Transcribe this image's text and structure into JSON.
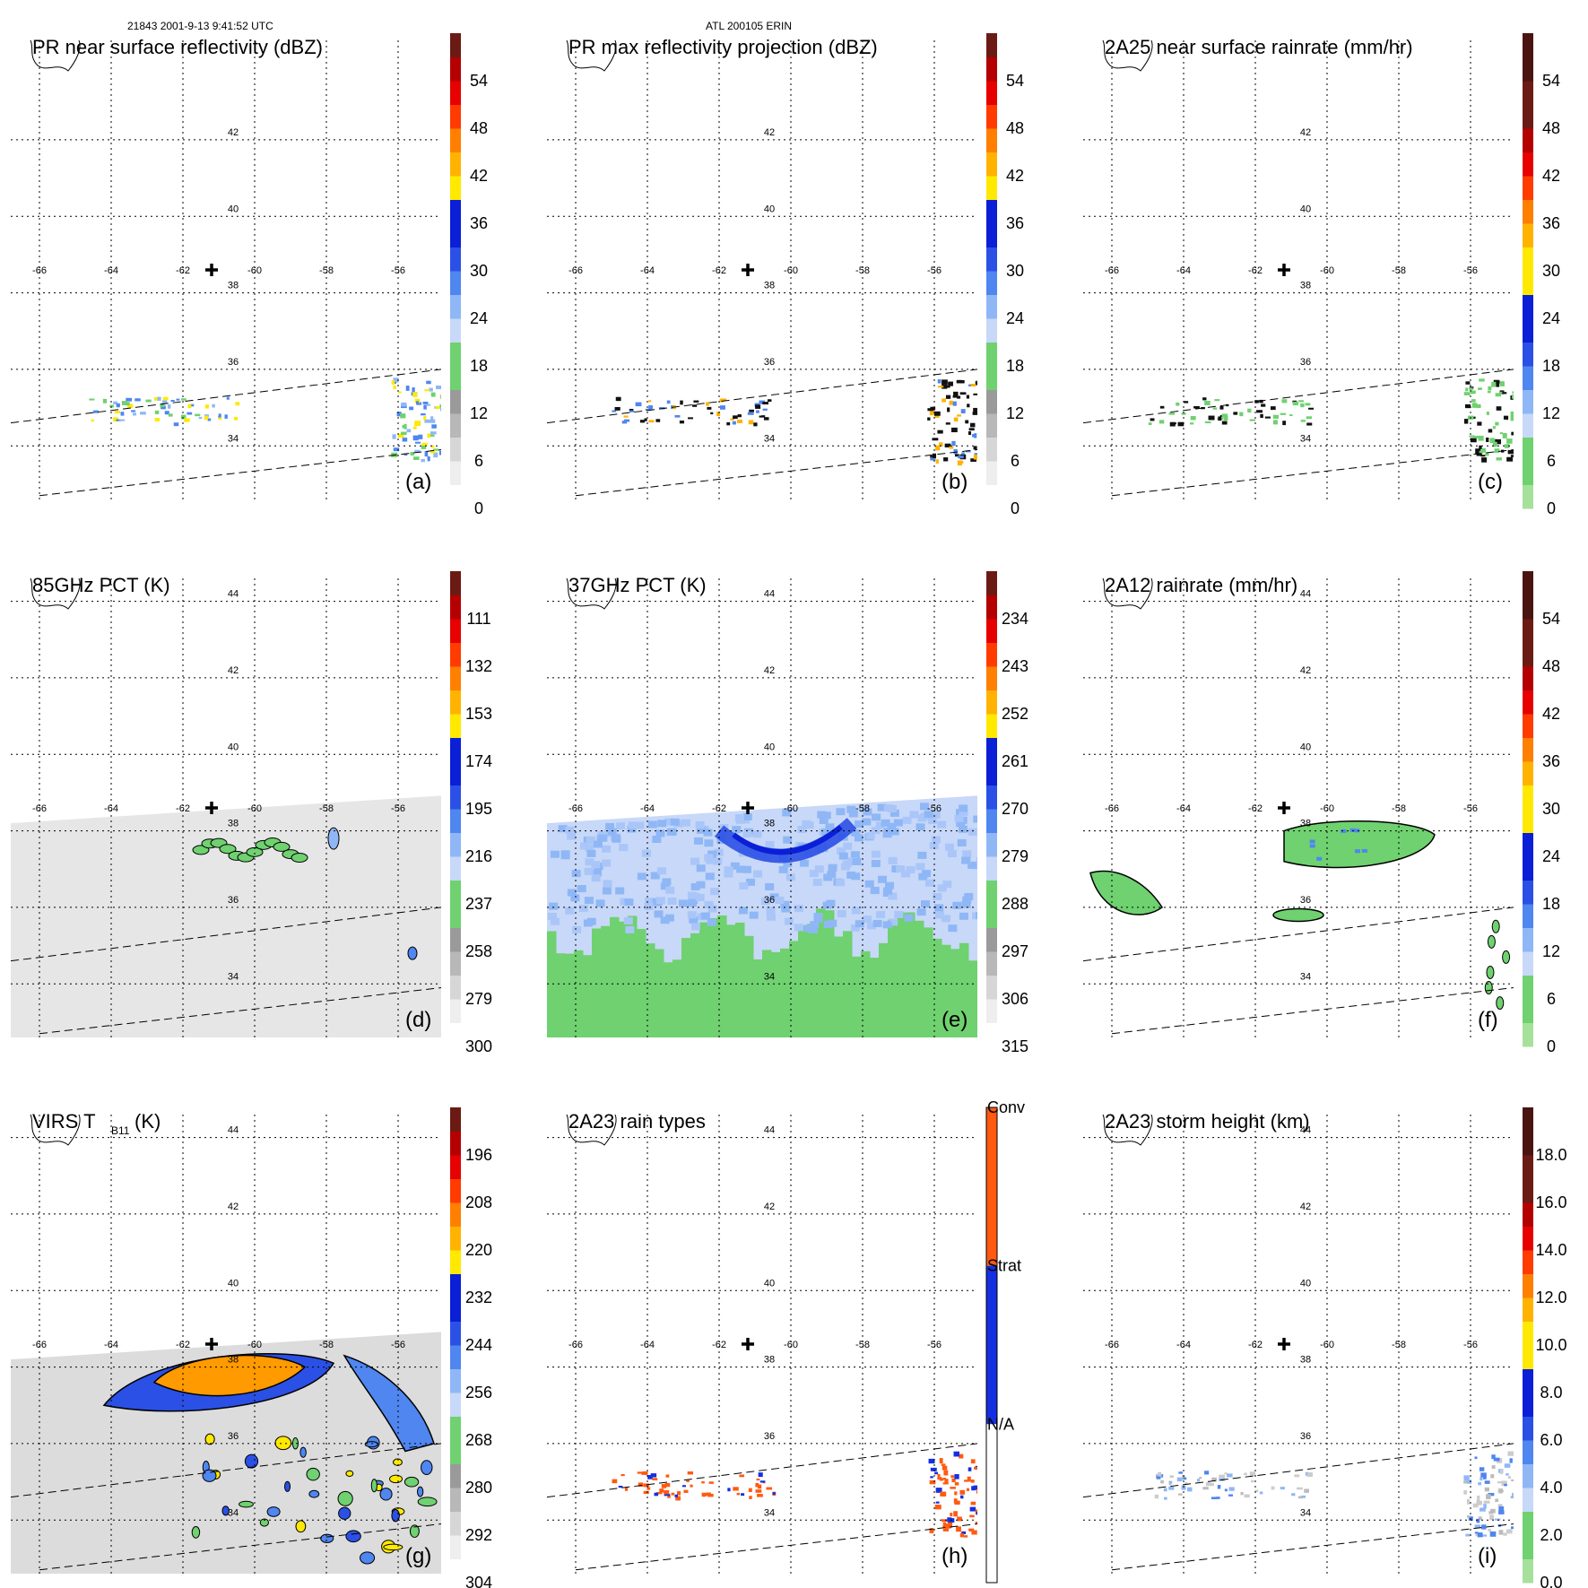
{
  "header": {
    "orbit_info": "21843 2001-9-13 9:41:52 UTC",
    "storm_info": "ATL 200105 ERIN"
  },
  "colors": {
    "greens": [
      "#d7f0d2",
      "#a6e19c",
      "#6fd16f"
    ],
    "blues": [
      "#c8d8f8",
      "#8fb7f6",
      "#4f86f0",
      "#2b50e6",
      "#0a1fd6"
    ],
    "yellows": [
      "#ffe900"
    ],
    "oranges": [
      "#ffb300",
      "#ff7f00"
    ],
    "reds": [
      "#ff3b00",
      "#e60000",
      "#b40000",
      "#6b1b14"
    ],
    "grays": [
      "#f4f4f4",
      "#dddddd",
      "#c2c2c2",
      "#a8a8a8"
    ],
    "conv": "#ff5a10",
    "strat": "#1530e0"
  },
  "chart_data": [
    {
      "type": "heatmap",
      "panel": "a",
      "title": "PR near surface reflectivity (dBZ)",
      "colorbar_ticks": [
        "0",
        "6",
        "12",
        "18",
        "24",
        "30",
        "36",
        "42",
        "48",
        "54"
      ],
      "colorbar_scheme": "dbz",
      "lon_ticks": [
        "-66",
        "-64",
        "-62",
        "-60",
        "-58",
        "-56"
      ],
      "lat_ticks": [
        "34",
        "36",
        "38",
        "40",
        "42"
      ],
      "x_range": [
        -66.8,
        -54.8
      ],
      "y_range": [
        32.6,
        44.6
      ],
      "storm_center": {
        "lon": -61.2,
        "lat": 38.6
      },
      "swath_edges": [
        {
          "lon1": -66.8,
          "lat1": 34.6,
          "lon2": -54.8,
          "lat2": 36.0
        },
        {
          "lon1": -66.0,
          "lat1": 32.7,
          "lon2": -54.8,
          "lat2": 33.9
        }
      ]
    },
    {
      "type": "heatmap",
      "panel": "b",
      "title": "PR max reflectivity projection (dBZ)",
      "colorbar_ticks": [
        "0",
        "6",
        "12",
        "18",
        "24",
        "30",
        "36",
        "42",
        "48",
        "54"
      ],
      "colorbar_scheme": "dbz",
      "lon_ticks": [
        "-66",
        "-64",
        "-62",
        "-60",
        "-58",
        "-56"
      ],
      "lat_ticks": [
        "34",
        "36",
        "38",
        "40",
        "42"
      ],
      "x_range": [
        -66.8,
        -54.8
      ],
      "y_range": [
        32.6,
        44.6
      ],
      "storm_center": {
        "lon": -61.2,
        "lat": 38.6
      },
      "swath_edges": [
        {
          "lon1": -66.8,
          "lat1": 34.6,
          "lon2": -54.8,
          "lat2": 36.0
        },
        {
          "lon1": -66.0,
          "lat1": 32.7,
          "lon2": -54.8,
          "lat2": 33.9
        }
      ]
    },
    {
      "type": "heatmap",
      "panel": "c",
      "title": "2A25 near surface rainrate (mm/hr)",
      "colorbar_ticks": [
        "0",
        "6",
        "12",
        "18",
        "24",
        "30",
        "36",
        "42",
        "48",
        "54"
      ],
      "colorbar_scheme": "rain",
      "lon_ticks": [
        "-66",
        "-64",
        "-62",
        "-60",
        "-58",
        "-56"
      ],
      "lat_ticks": [
        "34",
        "36",
        "38",
        "40",
        "42"
      ],
      "x_range": [
        -66.8,
        -54.8
      ],
      "y_range": [
        32.6,
        44.6
      ],
      "storm_center": {
        "lon": -61.2,
        "lat": 38.6
      },
      "swath_edges": [
        {
          "lon1": -66.8,
          "lat1": 34.6,
          "lon2": -54.8,
          "lat2": 36.0
        },
        {
          "lon1": -66.0,
          "lat1": 32.7,
          "lon2": -54.8,
          "lat2": 33.9
        }
      ]
    },
    {
      "type": "heatmap",
      "panel": "d",
      "title": "85GHz PCT (K)",
      "colorbar_ticks": [
        "300",
        "279",
        "258",
        "237",
        "216",
        "195",
        "174",
        "153",
        "132",
        "111"
      ],
      "colorbar_scheme": "dbz",
      "lon_ticks": [
        "-66",
        "-64",
        "-62",
        "-60",
        "-58",
        "-56"
      ],
      "lat_ticks": [
        "34",
        "36",
        "38",
        "40",
        "42",
        "44"
      ],
      "x_range": [
        -66.8,
        -54.8
      ],
      "y_range": [
        32.6,
        44.6
      ],
      "storm_center": {
        "lon": -61.2,
        "lat": 38.6
      },
      "swath_edges": [
        {
          "lon1": -66.8,
          "lat1": 34.6,
          "lon2": -54.8,
          "lat2": 36.0
        },
        {
          "lon1": -66.0,
          "lat1": 32.7,
          "lon2": -54.8,
          "lat2": 33.9
        }
      ]
    },
    {
      "type": "heatmap",
      "panel": "e",
      "title": "37GHz PCT (K)",
      "colorbar_ticks": [
        "315",
        "306",
        "297",
        "288",
        "279",
        "270",
        "261",
        "252",
        "243",
        "234"
      ],
      "colorbar_scheme": "dbz",
      "lon_ticks": [
        "-66",
        "-64",
        "-62",
        "-60",
        "-58",
        "-56"
      ],
      "lat_ticks": [
        "34",
        "36",
        "38",
        "40",
        "42",
        "44"
      ],
      "x_range": [
        -66.8,
        -54.8
      ],
      "y_range": [
        32.6,
        44.6
      ],
      "storm_center": {
        "lon": -61.2,
        "lat": 38.6
      },
      "swath_edges": []
    },
    {
      "type": "heatmap",
      "panel": "f",
      "title": "2A12 rainrate (mm/hr)",
      "colorbar_ticks": [
        "0",
        "6",
        "12",
        "18",
        "24",
        "30",
        "36",
        "42",
        "48",
        "54"
      ],
      "colorbar_scheme": "rain",
      "lon_ticks": [
        "-66",
        "-64",
        "-62",
        "-60",
        "-58",
        "-56"
      ],
      "lat_ticks": [
        "34",
        "36",
        "38",
        "40",
        "42",
        "44"
      ],
      "x_range": [
        -66.8,
        -54.8
      ],
      "y_range": [
        32.6,
        44.6
      ],
      "storm_center": {
        "lon": -61.2,
        "lat": 38.6
      },
      "swath_edges": [
        {
          "lon1": -66.8,
          "lat1": 34.6,
          "lon2": -54.8,
          "lat2": 36.0
        },
        {
          "lon1": -66.0,
          "lat1": 32.7,
          "lon2": -54.8,
          "lat2": 33.9
        }
      ]
    },
    {
      "type": "heatmap",
      "panel": "g",
      "title_main": "VIRS T",
      "title_sub": "B11",
      "title_units": "(K)",
      "colorbar_ticks": [
        "304",
        "292",
        "280",
        "268",
        "256",
        "244",
        "232",
        "220",
        "208",
        "196"
      ],
      "colorbar_scheme": "dbz",
      "lon_ticks": [
        "-66",
        "-64",
        "-62",
        "-60",
        "-58",
        "-56"
      ],
      "lat_ticks": [
        "34",
        "36",
        "38",
        "40",
        "42",
        "44"
      ],
      "x_range": [
        -66.8,
        -54.8
      ],
      "y_range": [
        32.6,
        44.6
      ],
      "storm_center": {
        "lon": -61.2,
        "lat": 38.6
      },
      "swath_edges": [
        {
          "lon1": -66.8,
          "lat1": 34.6,
          "lon2": -54.8,
          "lat2": 36.0
        },
        {
          "lon1": -66.0,
          "lat1": 32.7,
          "lon2": -54.8,
          "lat2": 33.9
        }
      ]
    },
    {
      "type": "heatmap",
      "panel": "h",
      "title": "2A23 rain types",
      "colorbar_ticks": [
        "N/A",
        "Strat",
        "Conv"
      ],
      "colorbar_scheme": "types",
      "lon_ticks": [
        "-66",
        "-64",
        "-62",
        "-60",
        "-58",
        "-56"
      ],
      "lat_ticks": [
        "34",
        "36",
        "38",
        "40",
        "42",
        "44"
      ],
      "x_range": [
        -66.8,
        -54.8
      ],
      "y_range": [
        32.6,
        44.6
      ],
      "storm_center": {
        "lon": -61.2,
        "lat": 38.6
      },
      "swath_edges": [
        {
          "lon1": -66.8,
          "lat1": 34.6,
          "lon2": -54.8,
          "lat2": 36.0
        },
        {
          "lon1": -66.0,
          "lat1": 32.7,
          "lon2": -54.8,
          "lat2": 33.9
        }
      ]
    },
    {
      "type": "heatmap",
      "panel": "i",
      "title": "2A23 storm height (km)",
      "colorbar_ticks": [
        "0.0",
        "2.0",
        "4.0",
        "6.0",
        "8.0",
        "10.0",
        "12.0",
        "14.0",
        "16.0",
        "18.0"
      ],
      "colorbar_scheme": "rain",
      "lon_ticks": [
        "-66",
        "-64",
        "-62",
        "-60",
        "-58",
        "-56"
      ],
      "lat_ticks": [
        "34",
        "36",
        "38",
        "40",
        "42",
        "44"
      ],
      "x_range": [
        -66.8,
        -54.8
      ],
      "y_range": [
        32.6,
        44.6
      ],
      "storm_center": {
        "lon": -61.2,
        "lat": 38.6
      },
      "swath_edges": [
        {
          "lon1": -66.8,
          "lat1": 34.6,
          "lon2": -54.8,
          "lat2": 36.0
        },
        {
          "lon1": -66.0,
          "lat1": 32.7,
          "lon2": -54.8,
          "lat2": 33.9
        }
      ]
    }
  ]
}
